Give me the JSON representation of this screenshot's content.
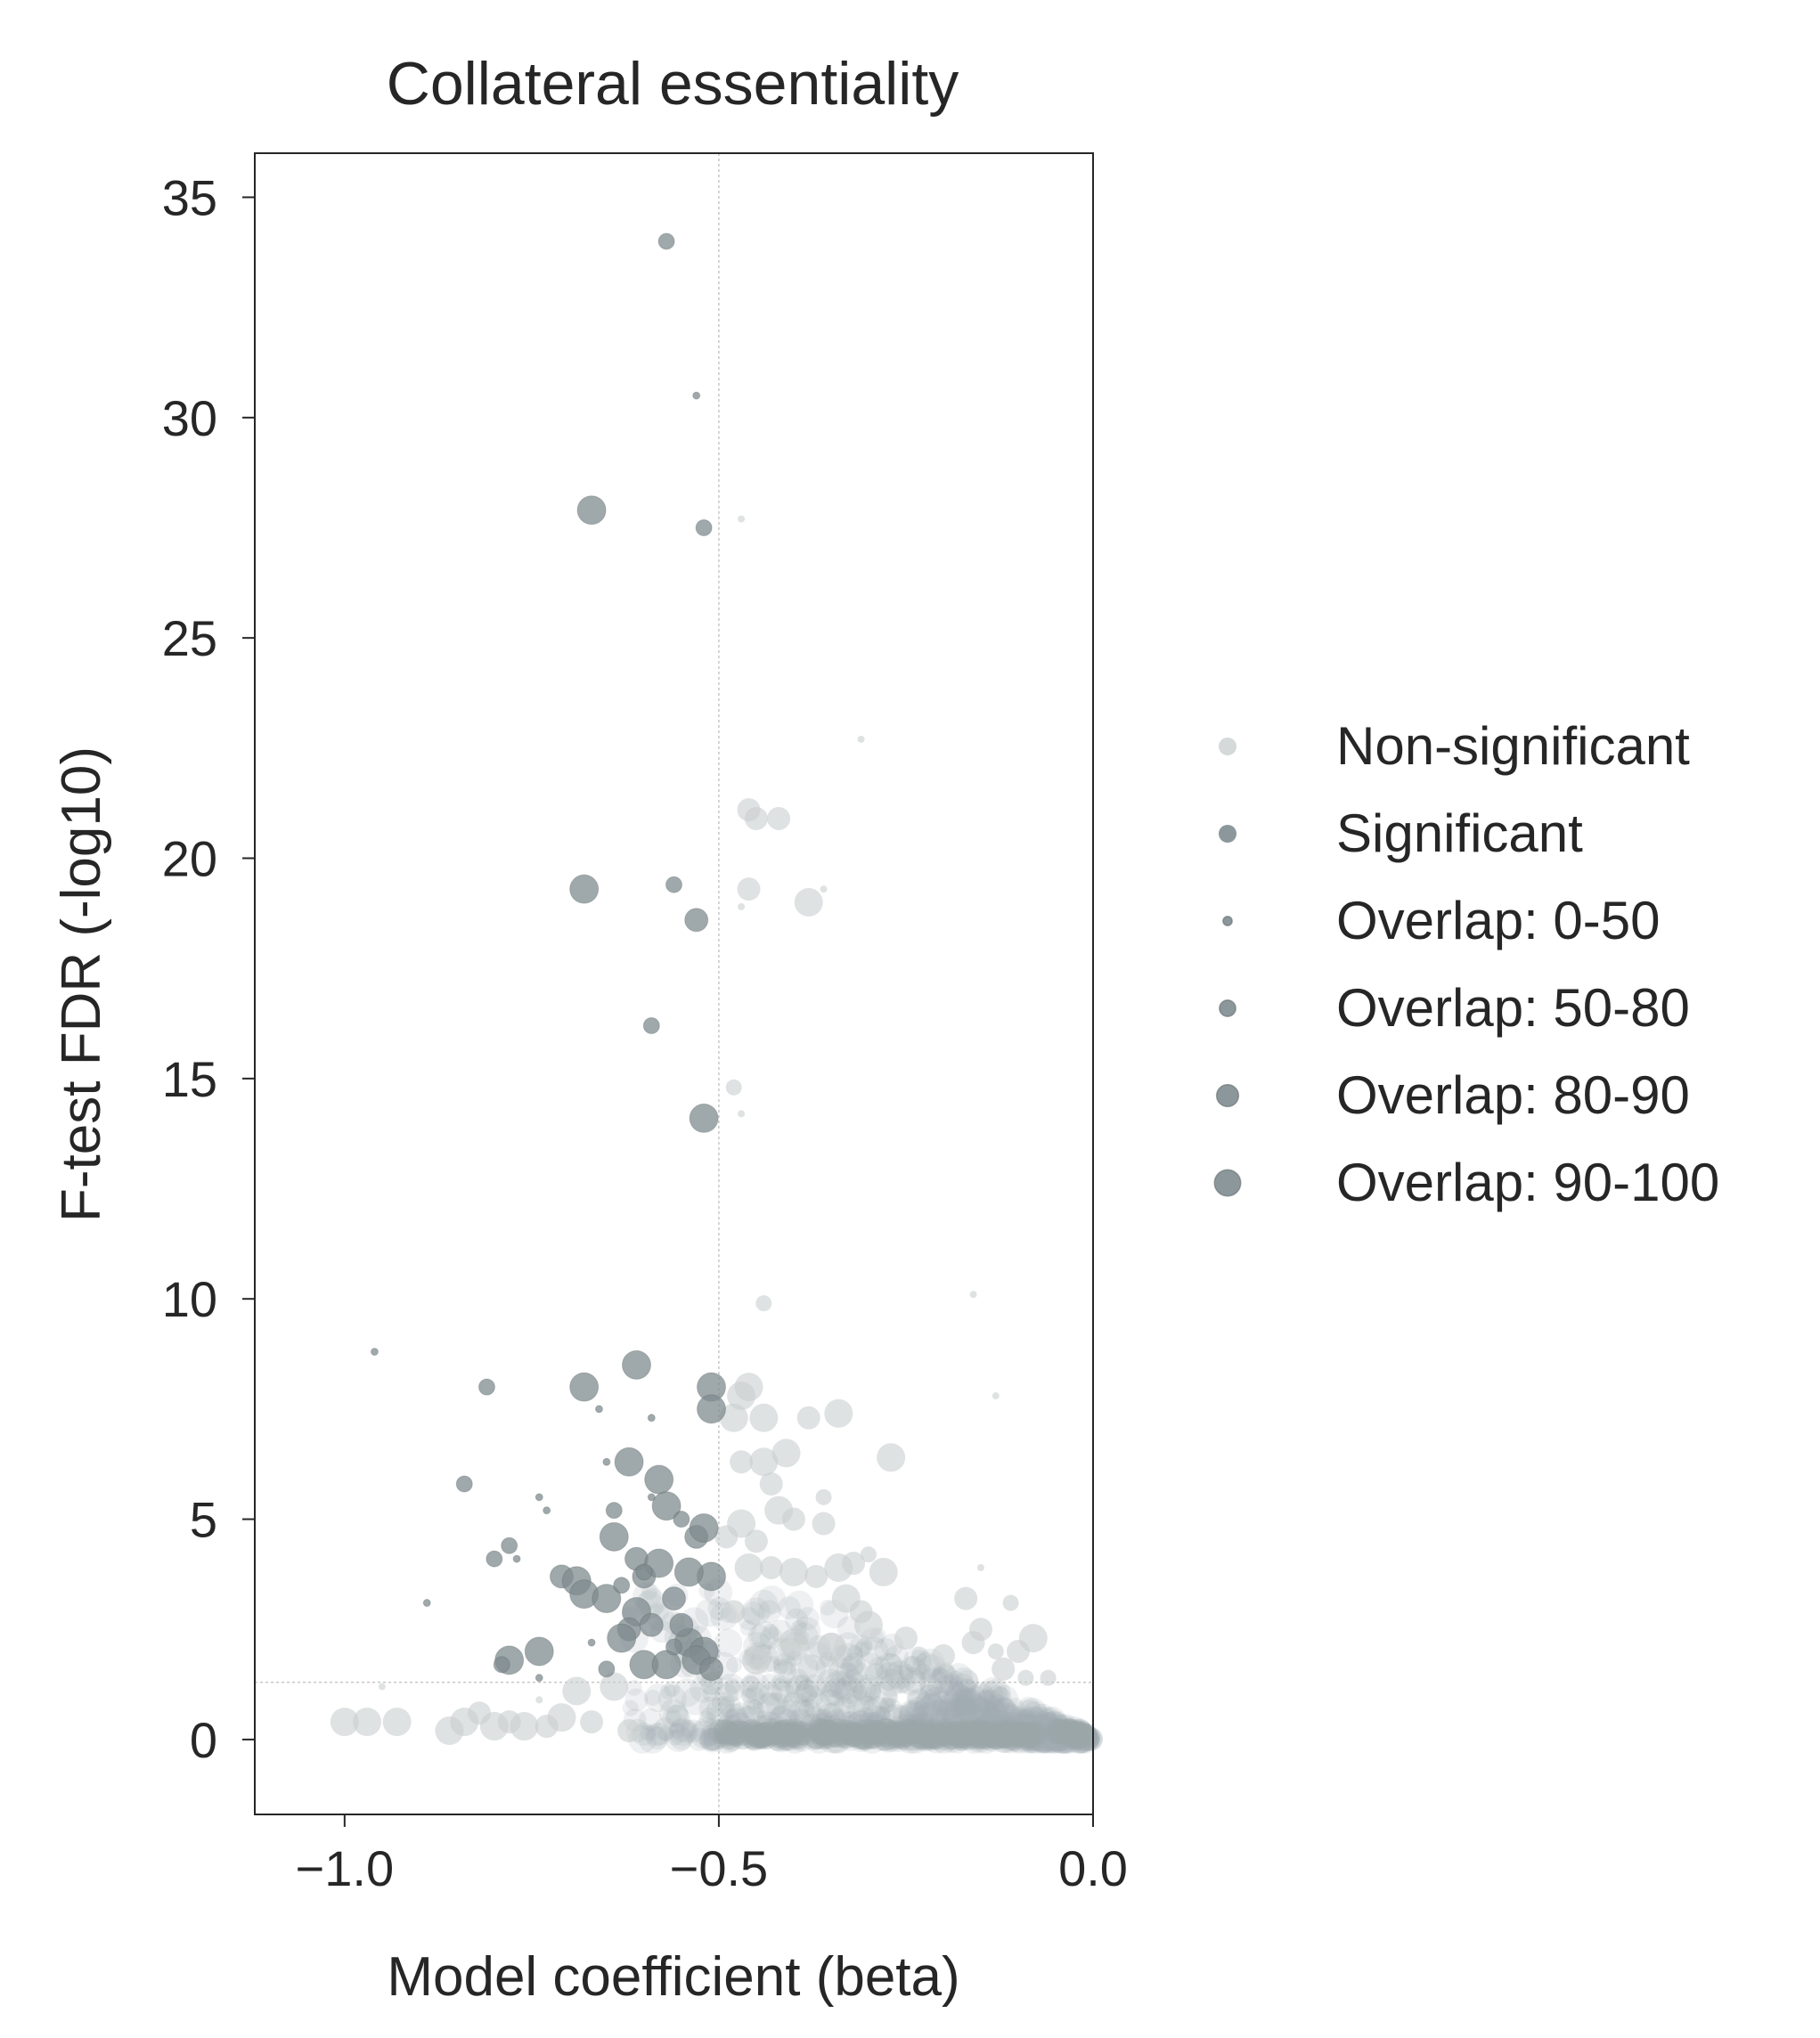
{
  "chart_data": {
    "type": "scatter",
    "title": "Collateral essentiality",
    "xlabel": "Model coefficient (beta)",
    "ylabel": "F-test FDR (-log10)",
    "xlim": [
      -1.12,
      0.0
    ],
    "ylim": [
      -1.7,
      36
    ],
    "xticks": [
      -1.0,
      -0.5,
      0.0
    ],
    "xtick_labels": [
      "−1.0",
      "−0.5",
      "0.0"
    ],
    "yticks": [
      0,
      5,
      10,
      15,
      20,
      25,
      30,
      35
    ],
    "ytick_labels": [
      "0",
      "5",
      "10",
      "15",
      "20",
      "25",
      "30",
      "35"
    ],
    "grid": false,
    "reference_lines": {
      "x": -0.5,
      "y": 1.3
    },
    "legend_placement": "right",
    "legend": [
      {
        "label": "Non-significant",
        "kind": "color",
        "color": "#d5d9d9"
      },
      {
        "label": "Significant",
        "kind": "color",
        "color": "#8b979b"
      },
      {
        "label": "Overlap: 0-50",
        "kind": "size",
        "size_class": 0
      },
      {
        "label": "Overlap: 50-80",
        "kind": "size",
        "size_class": 1
      },
      {
        "label": "Overlap: 80-90",
        "kind": "size",
        "size_class": 2
      },
      {
        "label": "Overlap: 90-100",
        "kind": "size",
        "size_class": 3
      }
    ],
    "series": [
      {
        "name": "Significant",
        "color": "#7f8b8f",
        "points": [
          [
            -0.57,
            34.0,
            1
          ],
          [
            -0.53,
            30.5,
            0
          ],
          [
            -0.67,
            27.9,
            3
          ],
          [
            -0.52,
            27.5,
            1
          ],
          [
            -0.68,
            19.3,
            3
          ],
          [
            -0.56,
            19.4,
            1
          ],
          [
            -0.53,
            18.6,
            2
          ],
          [
            -0.59,
            16.2,
            1
          ],
          [
            -0.52,
            14.1,
            3
          ],
          [
            -0.96,
            8.8,
            0
          ],
          [
            -0.81,
            8.0,
            1
          ],
          [
            -0.68,
            8.0,
            3
          ],
          [
            -0.61,
            8.5,
            3
          ],
          [
            -0.51,
            8.0,
            3
          ],
          [
            -0.51,
            7.5,
            3
          ],
          [
            -0.66,
            7.5,
            0
          ],
          [
            -0.59,
            7.3,
            0
          ],
          [
            -0.84,
            5.8,
            1
          ],
          [
            -0.78,
            4.4,
            1
          ],
          [
            -0.8,
            4.1,
            1
          ],
          [
            -0.74,
            5.5,
            0
          ],
          [
            -0.73,
            5.2,
            0
          ],
          [
            -0.77,
            4.1,
            0
          ],
          [
            -0.89,
            3.1,
            0
          ],
          [
            -0.71,
            3.7,
            2
          ],
          [
            -0.69,
            3.6,
            3
          ],
          [
            -0.68,
            3.3,
            3
          ],
          [
            -0.65,
            3.2,
            3
          ],
          [
            -0.64,
            4.6,
            3
          ],
          [
            -0.62,
            6.3,
            3
          ],
          [
            -0.58,
            5.9,
            3
          ],
          [
            -0.64,
            5.2,
            1
          ],
          [
            -0.61,
            4.1,
            2
          ],
          [
            -0.6,
            3.7,
            2
          ],
          [
            -0.58,
            4.0,
            3
          ],
          [
            -0.57,
            5.3,
            3
          ],
          [
            -0.55,
            5.0,
            1
          ],
          [
            -0.53,
            4.6,
            2
          ],
          [
            -0.52,
            4.8,
            3
          ],
          [
            -0.51,
            3.7,
            3
          ],
          [
            -0.54,
            3.8,
            3
          ],
          [
            -0.56,
            3.2,
            2
          ],
          [
            -0.61,
            2.9,
            3
          ],
          [
            -0.62,
            2.5,
            2
          ],
          [
            -0.59,
            2.6,
            2
          ],
          [
            -0.63,
            2.3,
            3
          ],
          [
            -0.6,
            1.7,
            3
          ],
          [
            -0.57,
            1.7,
            3
          ],
          [
            -0.54,
            2.2,
            3
          ],
          [
            -0.52,
            2.0,
            3
          ],
          [
            -0.55,
            2.6,
            2
          ],
          [
            -0.78,
            1.8,
            3
          ],
          [
            -0.74,
            2.0,
            3
          ],
          [
            -0.79,
            1.7,
            1
          ],
          [
            -0.74,
            1.4,
            0
          ],
          [
            -0.65,
            1.6,
            1
          ],
          [
            -0.53,
            1.8,
            3
          ],
          [
            -0.51,
            1.6,
            2
          ],
          [
            -0.6,
            3.8,
            1
          ],
          [
            -0.63,
            3.5,
            1
          ],
          [
            -0.56,
            2.1,
            1
          ],
          [
            -0.65,
            6.3,
            0
          ],
          [
            -0.59,
            5.5,
            0
          ],
          [
            -0.67,
            2.2,
            0
          ]
        ]
      },
      {
        "name": "Non-significant",
        "color": "#c9cfcf",
        "points": [
          [
            -0.47,
            27.7,
            0
          ],
          [
            -0.47,
            18.9,
            0
          ],
          [
            -0.31,
            22.7,
            0
          ],
          [
            -0.46,
            21.1,
            2
          ],
          [
            -0.45,
            20.9,
            2
          ],
          [
            -0.42,
            20.9,
            2
          ],
          [
            -0.46,
            19.3,
            2
          ],
          [
            -0.38,
            19.0,
            3
          ],
          [
            -0.36,
            19.3,
            0
          ],
          [
            -0.48,
            14.8,
            1
          ],
          [
            -0.47,
            14.2,
            0
          ],
          [
            -0.44,
            9.9,
            1
          ],
          [
            -0.16,
            10.1,
            0
          ],
          [
            -0.13,
            7.8,
            0
          ],
          [
            -0.46,
            8.0,
            3
          ],
          [
            -0.44,
            7.3,
            3
          ],
          [
            -0.48,
            7.3,
            3
          ],
          [
            -0.47,
            7.8,
            3
          ],
          [
            -0.38,
            7.3,
            2
          ],
          [
            -0.34,
            7.4,
            3
          ],
          [
            -0.27,
            6.4,
            3
          ],
          [
            -0.41,
            6.5,
            3
          ],
          [
            -0.44,
            6.3,
            3
          ],
          [
            -0.47,
            6.3,
            2
          ],
          [
            -0.43,
            5.8,
            2
          ],
          [
            -0.42,
            5.2,
            3
          ],
          [
            -0.4,
            5.0,
            2
          ],
          [
            -0.36,
            5.5,
            1
          ],
          [
            -0.36,
            4.9,
            2
          ],
          [
            -0.47,
            4.9,
            3
          ],
          [
            -0.45,
            4.5,
            2
          ],
          [
            -0.49,
            4.6,
            2
          ],
          [
            -0.46,
            3.9,
            3
          ],
          [
            -0.43,
            3.9,
            2
          ],
          [
            -0.4,
            3.8,
            3
          ],
          [
            -0.37,
            3.7,
            2
          ],
          [
            -0.34,
            3.9,
            3
          ],
          [
            -0.32,
            4.0,
            2
          ],
          [
            -0.3,
            4.2,
            1
          ],
          [
            -0.28,
            3.8,
            3
          ],
          [
            -0.33,
            3.2,
            3
          ],
          [
            -0.31,
            2.9,
            2
          ],
          [
            -0.15,
            3.9,
            0
          ],
          [
            -0.17,
            3.2,
            2
          ],
          [
            -0.11,
            3.1,
            1
          ],
          [
            -0.15,
            2.5,
            2
          ],
          [
            -0.16,
            2.2,
            2
          ],
          [
            -0.13,
            2.0,
            1
          ],
          [
            -0.1,
            2.0,
            2
          ],
          [
            -0.08,
            2.3,
            3
          ],
          [
            -0.12,
            1.6,
            2
          ],
          [
            -0.09,
            1.4,
            1
          ],
          [
            -0.06,
            1.4,
            1
          ],
          [
            -0.2,
            1.9,
            2
          ],
          [
            -0.25,
            2.3,
            2
          ],
          [
            -0.35,
            2.1,
            3
          ],
          [
            -0.4,
            2.2,
            3
          ],
          [
            -0.45,
            1.8,
            3
          ],
          [
            -0.48,
            2.9,
            2
          ],
          [
            -0.3,
            2.6,
            3
          ],
          [
            -1.0,
            0.4,
            3
          ],
          [
            -0.97,
            0.4,
            3
          ],
          [
            -0.93,
            0.4,
            3
          ],
          [
            -0.86,
            0.2,
            3
          ],
          [
            -0.84,
            0.4,
            3
          ],
          [
            -0.82,
            0.6,
            2
          ],
          [
            -0.8,
            0.3,
            3
          ],
          [
            -0.78,
            0.4,
            2
          ],
          [
            -0.76,
            0.3,
            3
          ],
          [
            -0.73,
            0.3,
            2
          ],
          [
            -0.71,
            0.5,
            3
          ],
          [
            -0.69,
            1.1,
            3
          ],
          [
            -0.67,
            0.4,
            2
          ],
          [
            -0.64,
            1.2,
            3
          ],
          [
            -0.62,
            0.2,
            2
          ],
          [
            -0.95,
            1.2,
            0
          ],
          [
            -0.74,
            0.9,
            0
          ]
        ]
      }
    ]
  }
}
